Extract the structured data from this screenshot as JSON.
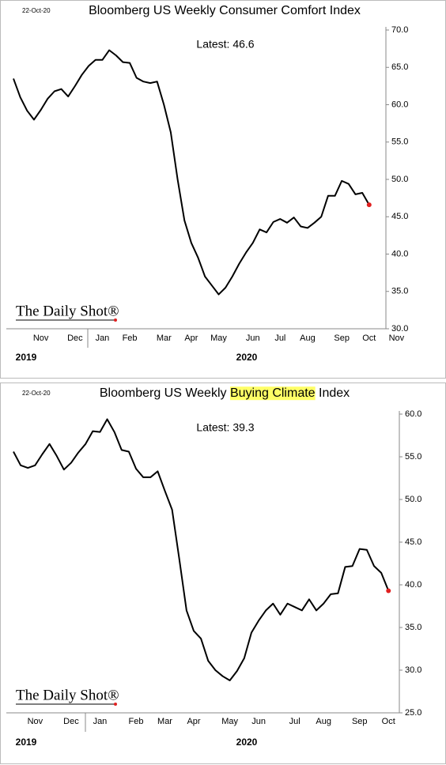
{
  "chart_data": [
    {
      "type": "line",
      "date": "22-Oct-20",
      "title": "Bloomberg US Weekly Consumer Comfort Index",
      "annotation": "Latest:  46.6",
      "watermark": "The Daily Shot®",
      "categories": [
        null,
        null,
        null,
        null,
        "Nov",
        null,
        null,
        null,
        null,
        "Dec",
        null,
        null,
        null,
        "Jan",
        null,
        null,
        null,
        "Feb",
        null,
        null,
        null,
        null,
        "Mar",
        null,
        null,
        null,
        "Apr",
        null,
        null,
        null,
        "May",
        null,
        null,
        null,
        null,
        "Jun",
        null,
        null,
        null,
        "Jul",
        null,
        null,
        null,
        "Aug",
        null,
        null,
        null,
        null,
        "Sep",
        null,
        null,
        null,
        "Oct",
        null,
        null,
        null,
        "Nov"
      ],
      "years": [
        "2019",
        "2020"
      ],
      "series": [
        {
          "name": null,
          "color": "#000000",
          "marker_color": "#e02020",
          "values": [
            63.5,
            61,
            59.2,
            58,
            59.3,
            60.8,
            61.8,
            62.1,
            61.1,
            62.5,
            64,
            65.2,
            66,
            66,
            67.3,
            66.6,
            65.7,
            65.6,
            63.6,
            63.1,
            62.9,
            63.1,
            60,
            56.3,
            50,
            44.5,
            41.5,
            39.5,
            37,
            35.8,
            34.6,
            35.5,
            37,
            38.7,
            40.2,
            41.5,
            43.3,
            42.9,
            44.3,
            44.7,
            44.2,
            44.9,
            43.7,
            43.5,
            44.2,
            45,
            47.8,
            47.8,
            49.8,
            49.4,
            48,
            48.2,
            46.6,
            null,
            null,
            null,
            null
          ]
        }
      ],
      "ylim": [
        30,
        70
      ],
      "yticks": [
        {
          "value": 30,
          "label": "30.0"
        },
        {
          "value": 35,
          "label": "35.0"
        },
        {
          "value": 40,
          "label": "40.0"
        },
        {
          "value": 45,
          "label": "45.0"
        },
        {
          "value": 50,
          "label": "50.0"
        },
        {
          "value": 55,
          "label": "55.0"
        },
        {
          "value": 60,
          "label": "60.0"
        },
        {
          "value": 65,
          "label": "65.0"
        },
        {
          "value": 70,
          "label": "70.0"
        }
      ]
    },
    {
      "type": "line",
      "date": "22-Oct-20",
      "title": [
        {
          "text": "Bloomberg US Weekly "
        },
        {
          "text": "Buying Climate",
          "highlight": "#ffff66"
        },
        {
          "text": " Index"
        }
      ],
      "annotation": "Latest:  39.3",
      "watermark": "The Daily Shot®",
      "categories": [
        null,
        null,
        null,
        "Nov",
        null,
        null,
        null,
        null,
        "Dec",
        null,
        null,
        null,
        "Jan",
        null,
        null,
        null,
        null,
        "Feb",
        null,
        null,
        null,
        "Mar",
        null,
        null,
        null,
        "Apr",
        null,
        null,
        null,
        null,
        "May",
        null,
        null,
        null,
        "Jun",
        null,
        null,
        null,
        null,
        "Jul",
        null,
        null,
        null,
        "Aug",
        null,
        null,
        null,
        null,
        "Sep",
        null,
        null,
        null,
        "Oct"
      ],
      "years": [
        "2019",
        "2020"
      ],
      "series": [
        {
          "name": null,
          "color": "#000000",
          "marker_color": "#e02020",
          "values": [
            55.6,
            54,
            53.7,
            54,
            55.3,
            56.5,
            55.1,
            53.5,
            54.3,
            55.5,
            56.5,
            58,
            57.9,
            59.4,
            57.9,
            55.8,
            55.6,
            53.6,
            52.6,
            52.6,
            53.3,
            51,
            48.8,
            43,
            37,
            34.6,
            33.7,
            31.1,
            30,
            29.3,
            28.8,
            29.9,
            31.4,
            34.4,
            35.8,
            37,
            37.8,
            36.5,
            37.8,
            37.4,
            37,
            38.3,
            37,
            37.8,
            38.9,
            39,
            42.1,
            42.2,
            44.2,
            44.1,
            42.2,
            41.4,
            39.3
          ]
        }
      ],
      "ylim": [
        25,
        60
      ],
      "yticks": [
        {
          "value": 25,
          "label": "25.0"
        },
        {
          "value": 30,
          "label": "30.0"
        },
        {
          "value": 35,
          "label": "35.0"
        },
        {
          "value": 40,
          "label": "40.0"
        },
        {
          "value": 45,
          "label": "45.0"
        },
        {
          "value": 50,
          "label": "50.0"
        },
        {
          "value": 55,
          "label": "55.0"
        },
        {
          "value": 60,
          "label": "60.0"
        }
      ]
    }
  ]
}
